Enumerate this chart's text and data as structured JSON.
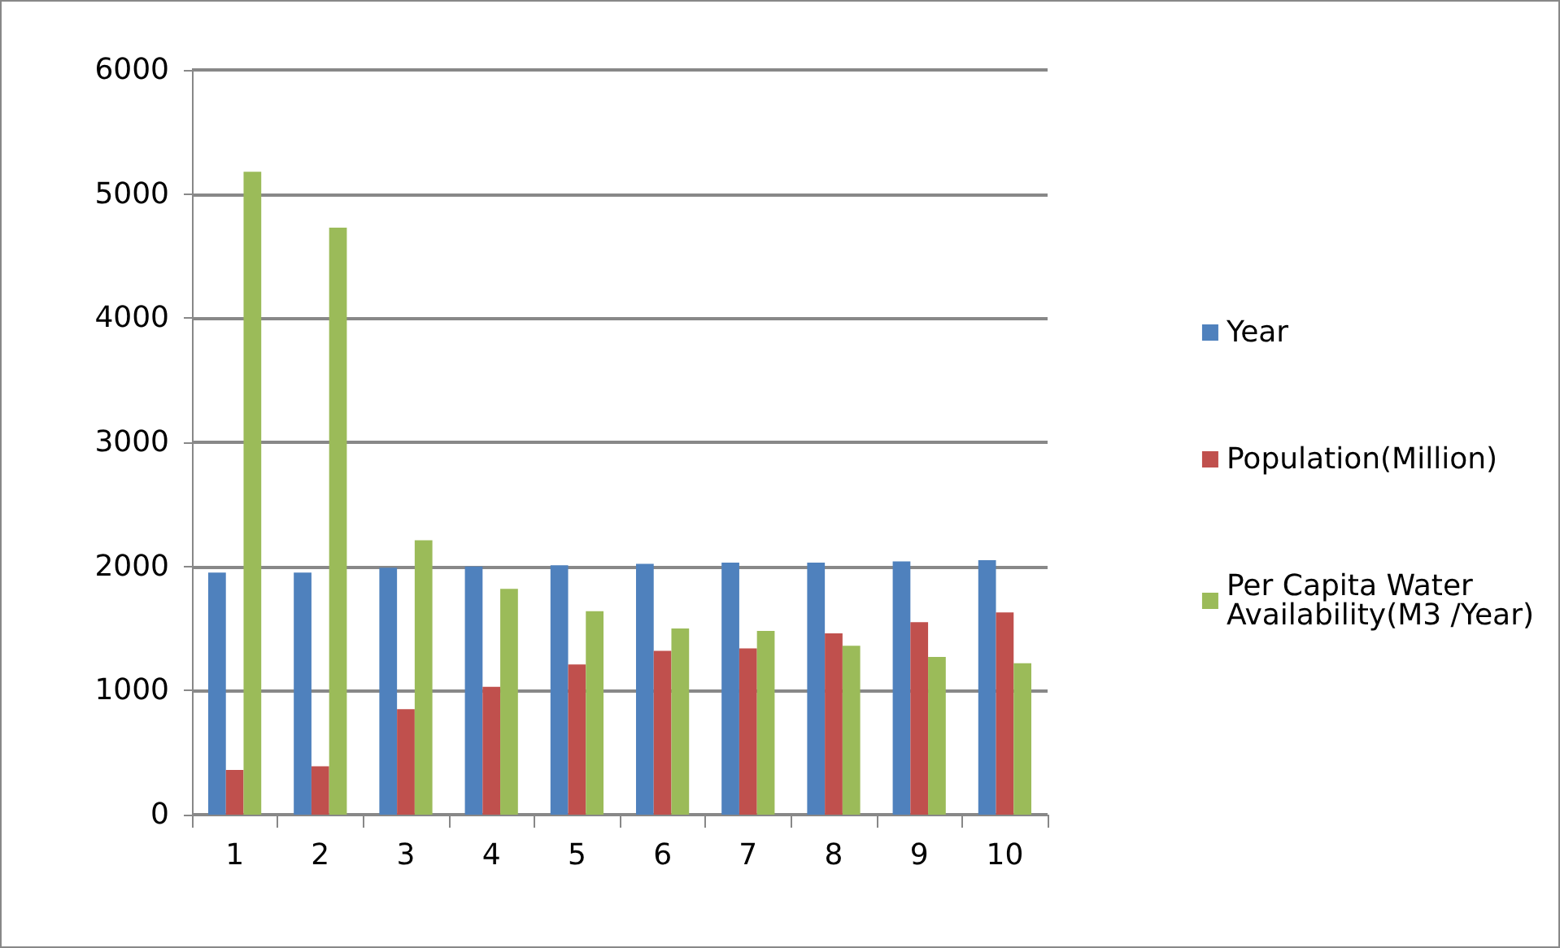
{
  "chart_data": {
    "type": "bar",
    "categories": [
      "1",
      "2",
      "3",
      "4",
      "5",
      "6",
      "7",
      "8",
      "9",
      "10"
    ],
    "series": [
      {
        "name": "Year",
        "color": "#4f81bd",
        "values": [
          1950,
          1950,
          1990,
          2000,
          2010,
          2020,
          2030,
          2030,
          2040,
          2050
        ]
      },
      {
        "name": "Population(Million)",
        "color": "#c0504d",
        "values": [
          360,
          390,
          850,
          1030,
          1210,
          1320,
          1340,
          1460,
          1550,
          1630
        ]
      },
      {
        "name": "Per Capita Water Availability(M3 /Year)",
        "color": "#9bbb59",
        "values": [
          5180,
          4730,
          2210,
          1820,
          1640,
          1500,
          1480,
          1360,
          1270,
          1220
        ]
      }
    ],
    "ylim": [
      0,
      6000
    ],
    "yticks": [
      0,
      1000,
      2000,
      3000,
      4000,
      5000,
      6000
    ],
    "grid": "y",
    "legend": "right"
  }
}
